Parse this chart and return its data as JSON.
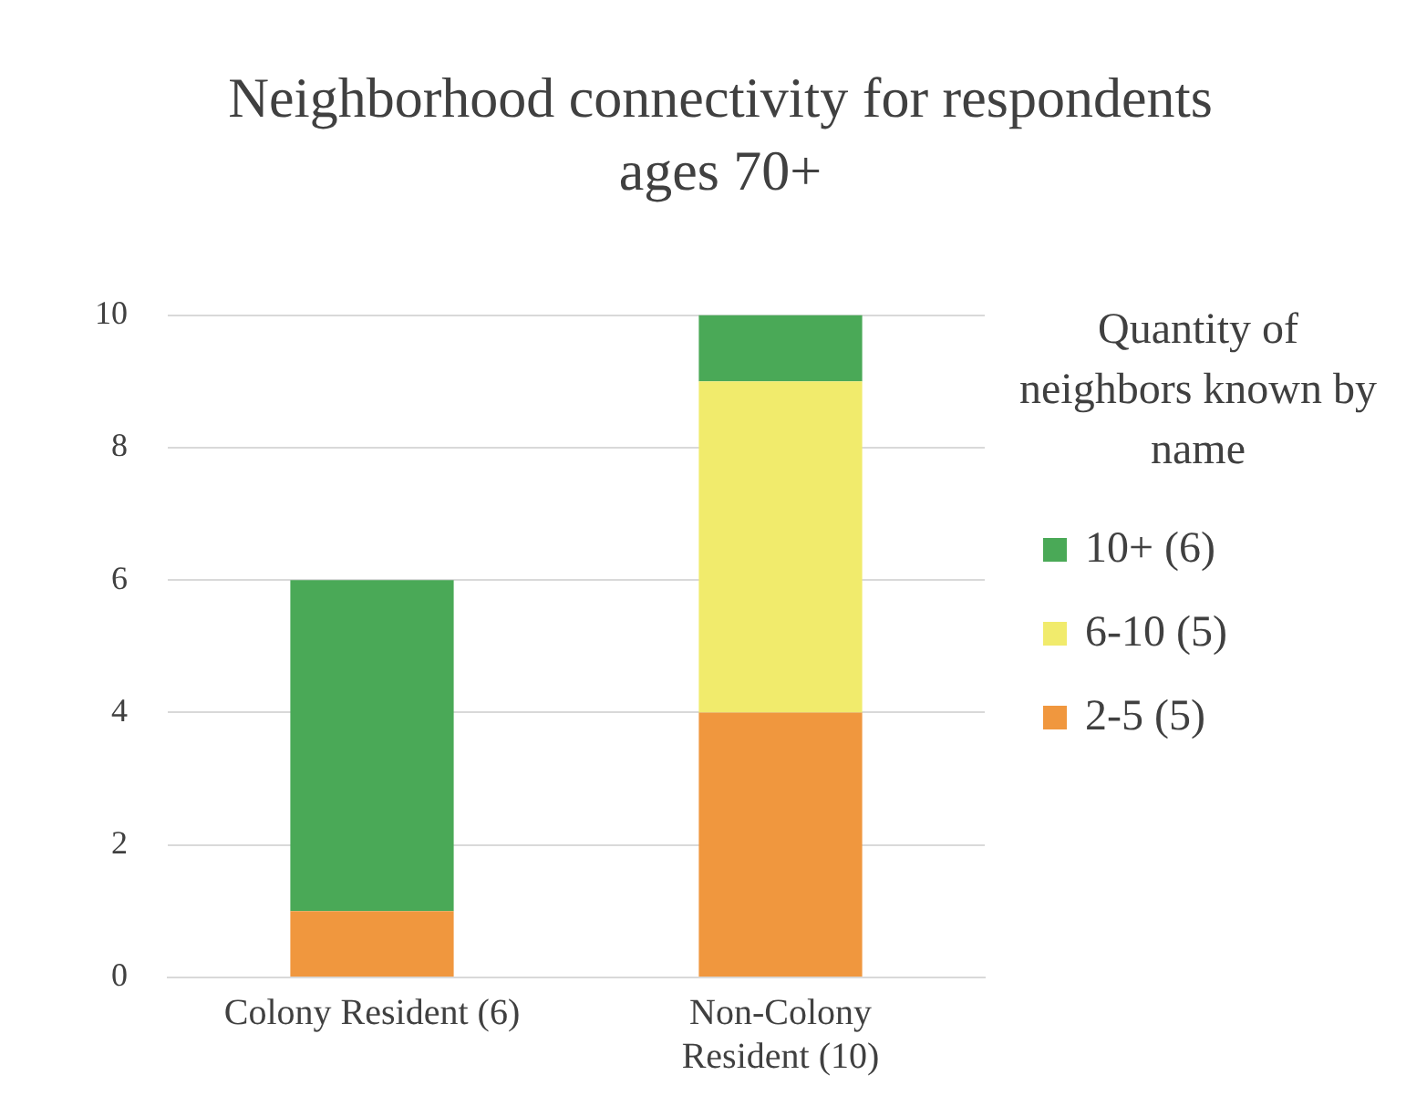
{
  "chart_data": {
    "type": "bar",
    "title": "Neighborhood connectivity for respondents ages 70+",
    "legend_title": "Quantity of neighbors known by name",
    "categories": [
      "Colony Resident (6)",
      "Non-Colony Resident (10)"
    ],
    "series": [
      {
        "name": "2-5 (5)",
        "color": "#f0973e",
        "values": [
          1,
          4
        ]
      },
      {
        "name": "6-10 (5)",
        "color": "#f1eb6c",
        "values": [
          0,
          5
        ]
      },
      {
        "name": "10+ (6)",
        "color": "#4aa957",
        "values": [
          5,
          1
        ]
      }
    ],
    "stacked": true,
    "ylim": [
      0,
      10
    ],
    "yticks": [
      0,
      2,
      4,
      6,
      8,
      10
    ],
    "grid": "y",
    "legend": "right"
  }
}
